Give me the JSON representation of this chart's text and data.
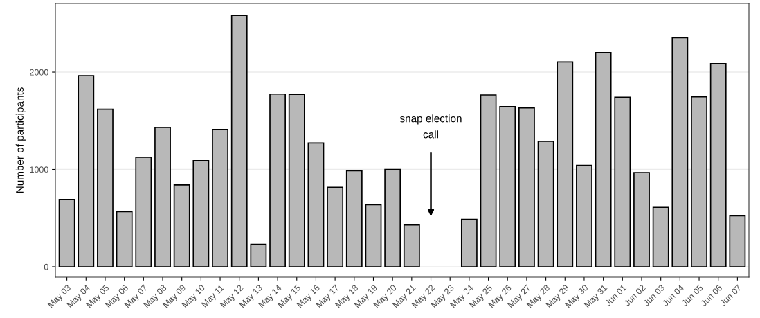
{
  "chart_data": {
    "type": "bar",
    "ylabel": "Number of participants",
    "categories": [
      "May 03",
      "May 04",
      "May 05",
      "May 06",
      "May 07",
      "May 08",
      "May 09",
      "May 10",
      "May 11",
      "May 12",
      "May 13",
      "May 14",
      "May 15",
      "May 16",
      "May 17",
      "May 18",
      "May 19",
      "May 20",
      "May 21",
      "May 22",
      "May 23",
      "May 24",
      "May 25",
      "May 26",
      "May 27",
      "May 28",
      "May 29",
      "May 30",
      "May 31",
      "Jun 01",
      "Jun 02",
      "Jun 03",
      "Jun 04",
      "Jun 05",
      "Jun 06",
      "Jun 07"
    ],
    "values": [
      691,
      1964,
      1619,
      567,
      1126,
      1431,
      841,
      1090,
      1410,
      2582,
      231,
      1774,
      1771,
      1271,
      816,
      986,
      638,
      1000,
      430,
      null,
      null,
      486,
      1765,
      1646,
      1633,
      1289,
      2104,
      1043,
      2200,
      1742,
      967,
      610,
      2354,
      1747,
      2086,
      524
    ],
    "color": "#b8b8b8",
    "ylim": [
      -107,
      2705
    ],
    "yticks": [
      0,
      1000,
      2000
    ],
    "grid": "y",
    "annotations": [
      "snap election\ncall"
    ]
  }
}
